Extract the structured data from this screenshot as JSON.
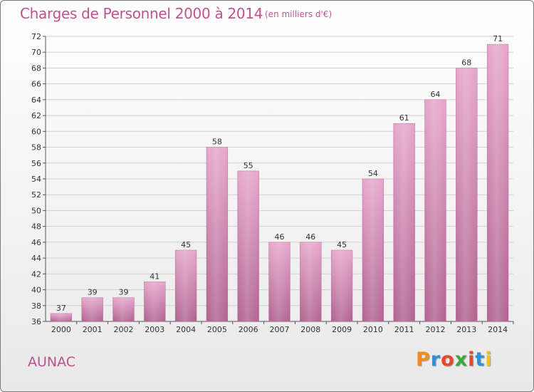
{
  "header": {
    "title": "Charges de Personnel 2000 à 2014",
    "subtitle": "(en milliers d'€)"
  },
  "footer": {
    "commune": "AUNAC",
    "logo_text": "Proxiti",
    "logo_colors": [
      "#f28c1e",
      "#2f8fd8",
      "#e8462e",
      "#3aa83a",
      "#e8462e",
      "#2f8fd8",
      "#f2c21e"
    ]
  },
  "chart_data": {
    "type": "bar",
    "title": "Charges de Personnel 2000 à 2014",
    "subtitle": "(en milliers d'€)",
    "xlabel": "",
    "ylabel": "",
    "categories": [
      "2000",
      "2001",
      "2002",
      "2003",
      "2004",
      "2005",
      "2006",
      "2007",
      "2008",
      "2009",
      "2010",
      "2011",
      "2012",
      "2013",
      "2014"
    ],
    "values": [
      37,
      39,
      39,
      41,
      45,
      58,
      55,
      46,
      46,
      45,
      54,
      61,
      64,
      68,
      71
    ],
    "ylim": [
      36,
      72
    ],
    "yticks": [
      36,
      38,
      40,
      42,
      44,
      46,
      48,
      50,
      52,
      54,
      56,
      58,
      60,
      62,
      64,
      66,
      68,
      70,
      72
    ],
    "grid": true,
    "legend": "none",
    "bar_color": "#d687b5"
  }
}
